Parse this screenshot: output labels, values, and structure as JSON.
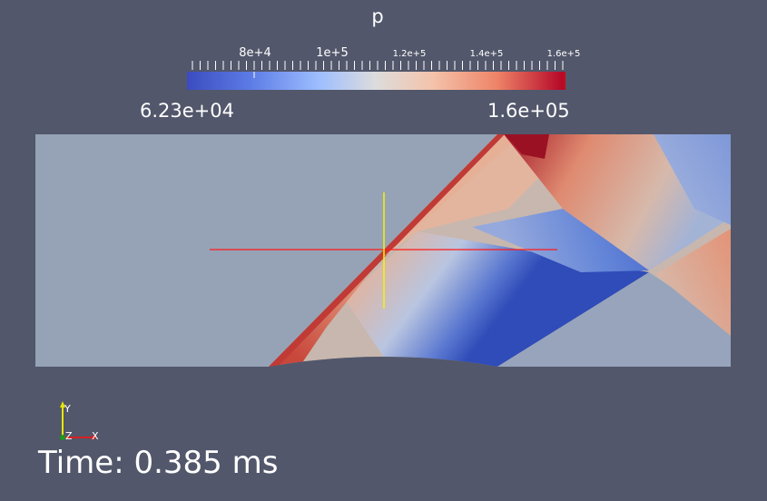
{
  "viewport": {
    "background": "#52576b"
  },
  "scalar_bar": {
    "title": "p",
    "colormap": [
      "#3b4cc0",
      "#7b9ff9",
      "#c0d4f5",
      "#dddddd",
      "#f2cbb7",
      "#ee8468",
      "#b40426"
    ],
    "tick_labels": [
      "8e+4",
      "1e+5",
      "1.2e+5",
      "1.4e+5",
      "1.6e+5"
    ],
    "min_label": "6.23e+04",
    "max_label": "1.6e+05"
  },
  "orientation_axes": {
    "x_label": "X",
    "y_label": "Y",
    "z_label": "Z",
    "x_color": "#d62020",
    "y_color": "#e6e600",
    "z_color": "#1a9a1a"
  },
  "probe_cursor": {
    "horizontal_color": "#ff1a1a",
    "vertical_color": "#f5f500"
  },
  "time_annotation": {
    "text": "Time: 0.385 ms"
  }
}
